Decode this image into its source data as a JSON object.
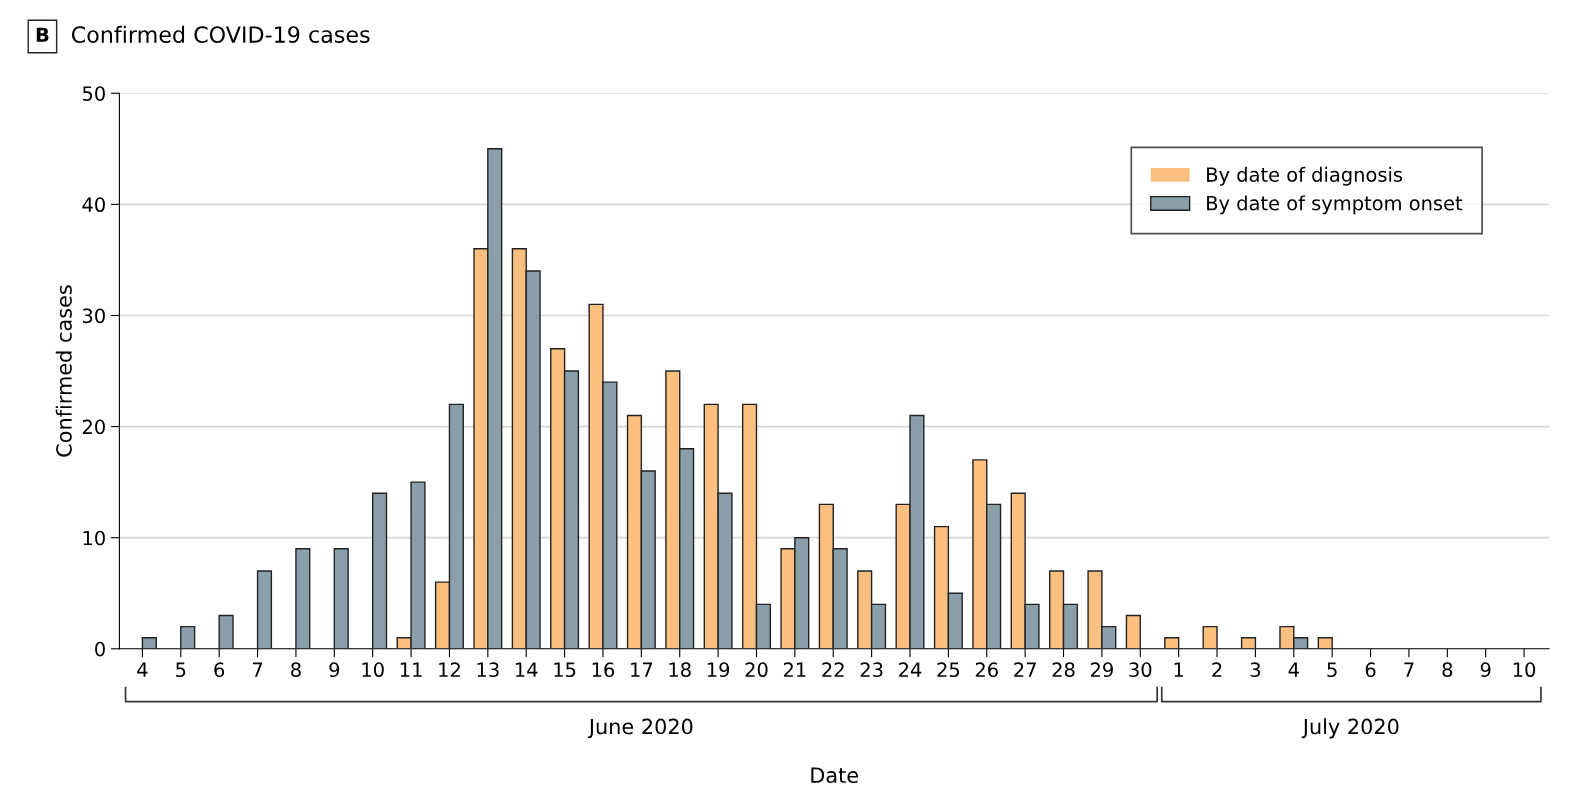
{
  "chart_data": {
    "type": "bar",
    "title": "Confirmed COVID-19 cases",
    "xlabel": "Date",
    "ylabel": "Confirmed cases",
    "categories": [
      "4",
      "5",
      "6",
      "7",
      "8",
      "9",
      "10",
      "11",
      "12",
      "13",
      "14",
      "15",
      "16",
      "17",
      "18",
      "19",
      "20",
      "21",
      "22",
      "23",
      "24",
      "25",
      "26",
      "27",
      "28",
      "29",
      "30",
      "1",
      "2",
      "3",
      "4",
      "5",
      "6",
      "7",
      "8",
      "9",
      "10"
    ],
    "series": [
      {
        "name": "By date of diagnosis",
        "color": "#fbc080",
        "values": [
          0,
          0,
          0,
          0,
          0,
          0,
          0,
          1,
          6,
          36,
          36,
          27,
          31,
          21,
          25,
          22,
          22,
          9,
          13,
          7,
          13,
          11,
          17,
          14,
          7,
          7,
          3,
          1,
          2,
          1,
          2,
          1,
          0,
          0,
          0,
          0,
          0
        ]
      },
      {
        "name": "By date of symptom onset",
        "color": "#8a9fa9",
        "values": [
          1,
          2,
          3,
          7,
          9,
          9,
          14,
          15,
          22,
          45,
          34,
          25,
          24,
          16,
          18,
          14,
          4,
          10,
          9,
          4,
          21,
          5,
          13,
          4,
          4,
          2,
          0,
          0,
          0,
          0,
          1,
          0,
          0,
          0,
          0,
          0,
          0
        ]
      }
    ],
    "ylim": [
      0,
      50
    ],
    "yticks": [
      0,
      10,
      20,
      30,
      40,
      50
    ],
    "grid": "y",
    "legend": "top right",
    "annotations": [
      "B",
      "June 2020",
      "July 2020"
    ]
  }
}
